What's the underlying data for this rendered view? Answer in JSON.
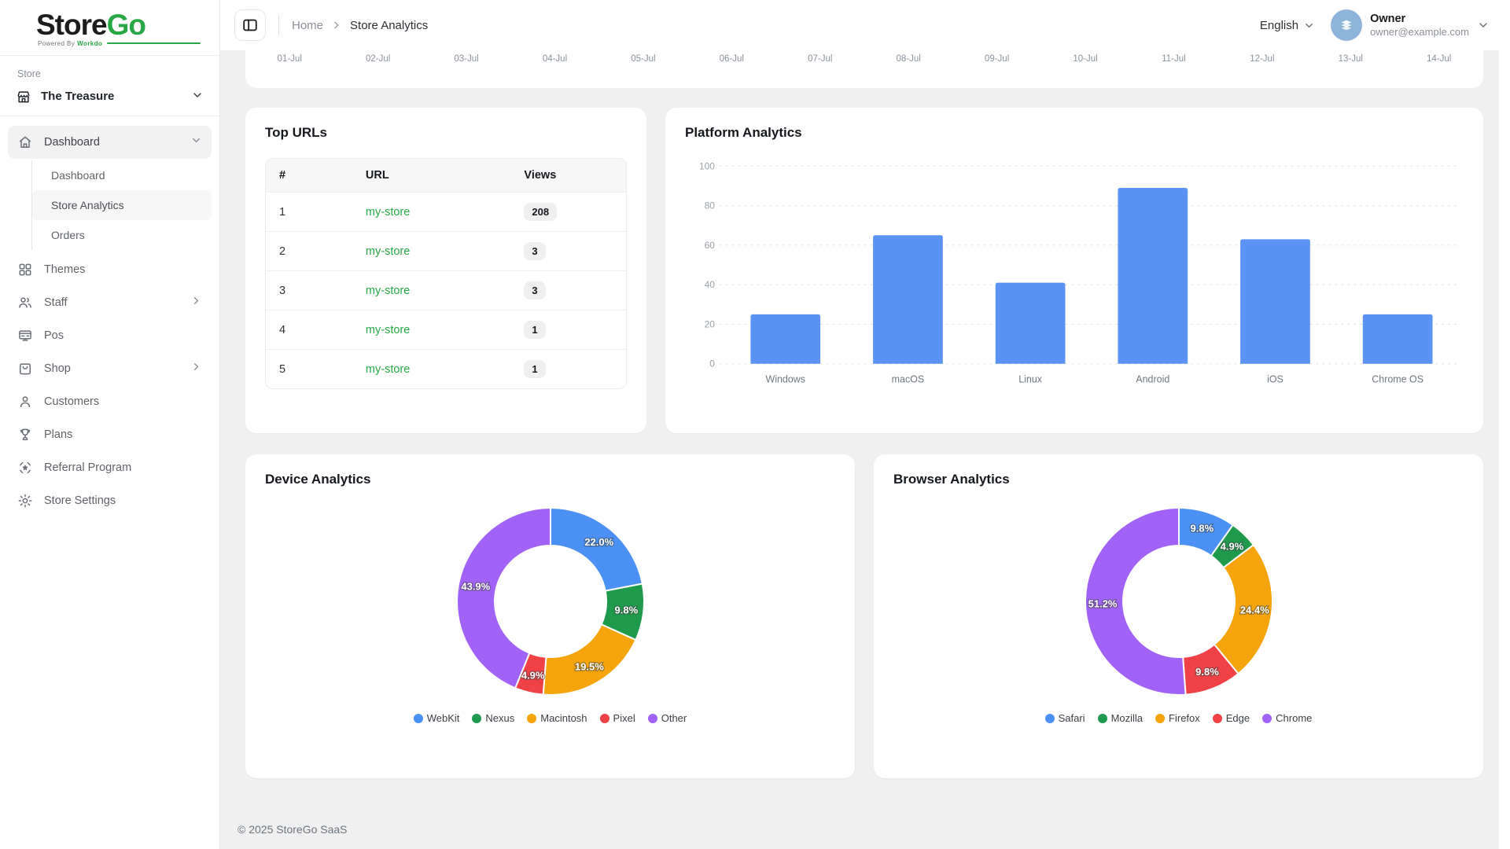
{
  "sidebar": {
    "logo": {
      "part1": "Store",
      "part2": "Go",
      "powered_prefix": "Powered By",
      "powered_brand": "Workdo"
    },
    "section_label": "Store",
    "store_name": "The Treasure",
    "nav": [
      {
        "label": "Dashboard",
        "icon": "home-icon",
        "expanded": true,
        "active": true,
        "children": [
          {
            "label": "Dashboard",
            "active": false
          },
          {
            "label": "Store Analytics",
            "active": true
          },
          {
            "label": "Orders",
            "active": false
          }
        ]
      },
      {
        "label": "Themes",
        "icon": "grid-icon"
      },
      {
        "label": "Staff",
        "icon": "users-icon",
        "has_chevron": true
      },
      {
        "label": "Pos",
        "icon": "pos-monitor-icon"
      },
      {
        "label": "Shop",
        "icon": "shopping-bag-icon",
        "has_chevron": true
      },
      {
        "label": "Customers",
        "icon": "user-icon"
      },
      {
        "label": "Plans",
        "icon": "trophy-icon"
      },
      {
        "label": "Referral Program",
        "icon": "referral-star-icon"
      },
      {
        "label": "Store Settings",
        "icon": "gear-icon"
      }
    ]
  },
  "header": {
    "breadcrumb": {
      "home": "Home",
      "current": "Store Analytics"
    },
    "language": "English",
    "user": {
      "name": "Owner",
      "email": "owner@example.com"
    }
  },
  "top_chart": {
    "x_labels": [
      "01-Jul",
      "02-Jul",
      "03-Jul",
      "04-Jul",
      "05-Jul",
      "06-Jul",
      "07-Jul",
      "08-Jul",
      "09-Jul",
      "10-Jul",
      "11-Jul",
      "12-Jul",
      "13-Jul",
      "14-Jul"
    ]
  },
  "top_urls": {
    "title": "Top URLs",
    "columns": [
      "#",
      "URL",
      "Views"
    ],
    "rows": [
      {
        "rank": "1",
        "url": "my-store",
        "views": "208"
      },
      {
        "rank": "2",
        "url": "my-store",
        "views": "3"
      },
      {
        "rank": "3",
        "url": "my-store",
        "views": "3"
      },
      {
        "rank": "4",
        "url": "my-store",
        "views": "1"
      },
      {
        "rank": "5",
        "url": "my-store",
        "views": "1"
      }
    ]
  },
  "chart_data": [
    {
      "id": "platform",
      "type": "bar",
      "title": "Platform Analytics",
      "categories": [
        "Windows",
        "macOS",
        "Linux",
        "Android",
        "iOS",
        "Chrome OS"
      ],
      "values": [
        25,
        65,
        41,
        89,
        63,
        25
      ],
      "ylim": [
        0,
        100
      ],
      "ytick_step": 20,
      "grid": "dashed horizontal",
      "bar_color": "#5b93f5",
      "legend_position": "none",
      "xlabel": "",
      "ylabel": ""
    },
    {
      "id": "device",
      "type": "pie",
      "subtype": "donut",
      "title": "Device Analytics",
      "labels": [
        "WebKit",
        "Nexus",
        "Macintosh",
        "Pixel",
        "Other"
      ],
      "values": [
        22.0,
        9.8,
        19.5,
        4.9,
        43.9
      ],
      "colors": [
        "#4a90f5",
        "#1f9a4d",
        "#f5a40b",
        "#ef4146",
        "#a163f7"
      ],
      "value_format": "percent",
      "legend_position": "bottom"
    },
    {
      "id": "browser",
      "type": "pie",
      "subtype": "donut",
      "title": "Browser Analytics",
      "labels": [
        "Safari",
        "Mozilla",
        "Firefox",
        "Edge",
        "Chrome"
      ],
      "values": [
        9.8,
        4.9,
        24.4,
        9.8,
        51.2
      ],
      "colors": [
        "#4a90f5",
        "#1f9a4d",
        "#f5a40b",
        "#ef4146",
        "#a163f7"
      ],
      "value_format": "percent",
      "legend_position": "bottom"
    }
  ],
  "footer": {
    "copyright": "© 2025 StoreGo SaaS"
  },
  "colors": {
    "accent_green": "#28a745",
    "bar_blue": "#5b93f5",
    "avatar_bg": "#8fb4d9",
    "page_bg": "#f0f0f0"
  }
}
